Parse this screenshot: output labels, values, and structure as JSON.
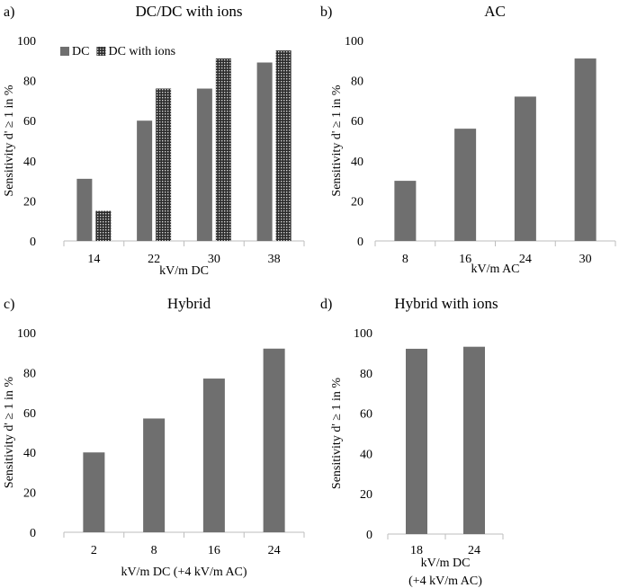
{
  "chart_data": [
    {
      "type": "bar",
      "panel_label": "a)",
      "title": "DC/DC with ions",
      "xlabel": "kV/m DC",
      "xlabel_lines": [
        "kV/m DC"
      ],
      "ylabel": "Sensitivity d' ≥ 1 in %",
      "ylim": [
        0,
        100
      ],
      "yticks": [
        0,
        20,
        40,
        60,
        80,
        100
      ],
      "categories": [
        "14",
        "22",
        "30",
        "38"
      ],
      "legend": "top-left",
      "series": [
        {
          "name": "DC",
          "values": [
            31,
            60,
            76,
            89
          ],
          "color": "#6f6f6f",
          "pattern": "solid"
        },
        {
          "name": "DC with ions",
          "values": [
            15,
            76,
            91,
            95
          ],
          "color": "#6f6f6f",
          "pattern": "dotted"
        }
      ]
    },
    {
      "type": "bar",
      "panel_label": "b)",
      "title": "AC",
      "xlabel": "kV/m AC",
      "xlabel_lines": [
        "kV/m AC"
      ],
      "ylabel": "Sensitivity d' ≥ 1 in %",
      "ylim": [
        0,
        100
      ],
      "yticks": [
        0,
        20,
        40,
        60,
        80,
        100
      ],
      "categories": [
        "8",
        "16",
        "24",
        "30"
      ],
      "series": [
        {
          "name": "AC",
          "values": [
            30,
            56,
            72,
            91
          ],
          "color": "#6f6f6f",
          "pattern": "solid"
        }
      ]
    },
    {
      "type": "bar",
      "panel_label": "c)",
      "title": "Hybrid",
      "xlabel": "kV/m DC (+4 kV/m AC)",
      "xlabel_lines": [
        "kV/m DC (+4 kV/m AC)"
      ],
      "ylabel": "Sensitivity d' ≥ 1 in %",
      "ylim": [
        0,
        100
      ],
      "yticks": [
        0,
        20,
        40,
        60,
        80,
        100
      ],
      "categories": [
        "2",
        "8",
        "16",
        "24"
      ],
      "series": [
        {
          "name": "Hybrid",
          "values": [
            40,
            57,
            77,
            92
          ],
          "color": "#6f6f6f",
          "pattern": "solid"
        }
      ]
    },
    {
      "type": "bar",
      "panel_label": "d)",
      "title": "Hybrid with ions",
      "xlabel": "kV/m DC (+4 kV/m AC)",
      "xlabel_lines": [
        "kV/m DC",
        "(+4 kV/m AC)"
      ],
      "ylabel": "Sensitivity d' ≥ 1 in %",
      "ylim": [
        0,
        100
      ],
      "yticks": [
        0,
        20,
        40,
        60,
        80,
        100
      ],
      "categories": [
        "18",
        "24"
      ],
      "series": [
        {
          "name": "Hybrid with ions",
          "values": [
            92,
            93
          ],
          "color": "#6f6f6f",
          "pattern": "solid"
        }
      ]
    }
  ]
}
